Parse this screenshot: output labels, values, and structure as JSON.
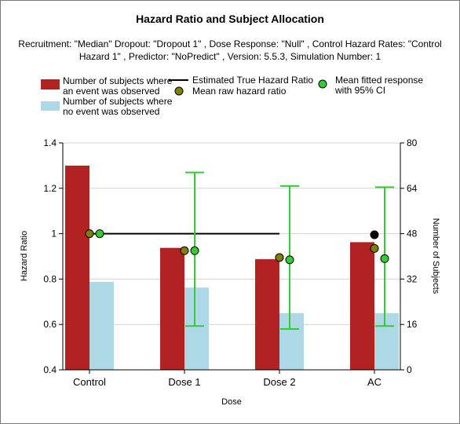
{
  "chart_data": {
    "type": "bar",
    "title": "Hazard Ratio and Subject Allocation",
    "subtitle": "Recruitment: \"Median\" Dropout: \"Dropout 1\" , Dose Response: \"Null\" , Control Hazard Rates: \"Control Hazard 1\" , Predictor: \"NoPredict\" , Version: 5.5.3, Simulation Number: 1",
    "categories": [
      "Control",
      "Dose 1",
      "Dose 2",
      "AC"
    ],
    "xlabel": "Dose",
    "ylabel_left": "Hazard Ratio",
    "ylabel_right": "Number of Subjects",
    "ylim_left": [
      0.4,
      1.4
    ],
    "yticks_left": [
      "0.4",
      "0.6",
      "0.8",
      "1",
      "1.2",
      "1.4"
    ],
    "ylim_right": [
      0,
      80
    ],
    "yticks_right": [
      "0",
      "16",
      "32",
      "48",
      "64",
      "80"
    ],
    "grid": true,
    "bars": [
      {
        "name": "Number of subjects where an event was observed",
        "color": "#b22222",
        "axis": "right",
        "values": [
          72,
          43,
          39,
          45
        ]
      },
      {
        "name": "Number of subjects where no event was observed",
        "color": "#add8e6",
        "axis": "right",
        "values": [
          31,
          29,
          20,
          20
        ]
      }
    ],
    "true_hazard_line": {
      "name": "Estimated True Hazard Ratio",
      "color": "#000000",
      "from": "Control",
      "to": "Dose 2",
      "value": 1.0
    },
    "true_hazard_point_ac": 0.995,
    "raw_hazard": {
      "name": "Mean raw hazard ratio",
      "color": "#808000",
      "values": [
        1.0,
        0.925,
        0.895,
        0.935
      ]
    },
    "fitted": {
      "name": "Mean fitted response with 95% CI",
      "color": "#32cd32",
      "values": [
        1.0,
        0.925,
        0.885,
        0.89
      ],
      "ci_low": [
        null,
        0.593,
        0.58,
        0.593
      ],
      "ci_high": [
        null,
        1.27,
        1.21,
        1.205
      ]
    }
  }
}
